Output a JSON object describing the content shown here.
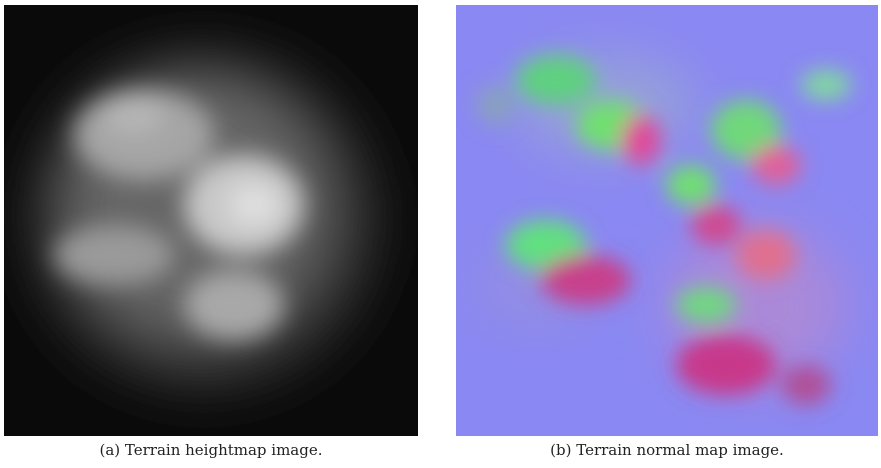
{
  "figure": {
    "panels": [
      {
        "caption": "(a) Terrain heightmap image."
      },
      {
        "caption": "(b) Terrain normal map image."
      }
    ]
  }
}
